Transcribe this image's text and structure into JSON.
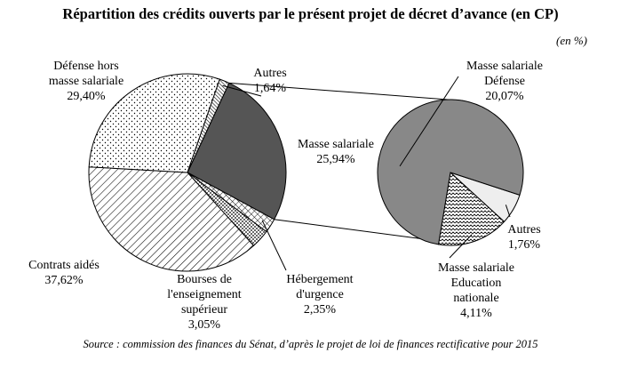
{
  "title": "Répartition des crédits ouverts par le présent projet de décret d’avance (en CP)",
  "unit": "(en %)",
  "source": "Source : commission des finances du Sénat, d’après le projet de loi de finances rectificative pour 2015",
  "colors": {
    "dark": "#555555",
    "medium": "#888888",
    "light": "#eeeeee",
    "stroke": "#000000"
  },
  "chart_data": [
    {
      "type": "pie",
      "slices": [
        {
          "label_lines": [
            "Masse salariale",
            "25,94%"
          ],
          "value": 25.94,
          "fill": "dark"
        },
        {
          "label_lines": [
            "Hébergement",
            "d'urgence",
            "2,35%"
          ],
          "value": 2.35,
          "fill": "crosshatch"
        },
        {
          "label_lines": [
            "Bourses de",
            "l'enseignement",
            "supérieur",
            "3,05%"
          ],
          "value": 3.05,
          "fill": "dots-small"
        },
        {
          "label_lines": [
            "Contrats aidés",
            "37,62%"
          ],
          "value": 37.62,
          "fill": "diagonal"
        },
        {
          "label_lines": [
            "Défense hors",
            "masse salariale",
            "29,40%"
          ],
          "value": 29.4,
          "fill": "dots"
        },
        {
          "label_lines": [
            "Autres",
            "1,64%"
          ],
          "value": 1.64,
          "fill": "diag-dense"
        }
      ]
    },
    {
      "type": "pie",
      "slices": [
        {
          "label_lines": [
            "Masse salariale",
            "Défense",
            "20,07%"
          ],
          "value": 20.07,
          "fill": "medium"
        },
        {
          "label_lines": [
            "Autres",
            "1,76%"
          ],
          "value": 1.76,
          "fill": "light"
        },
        {
          "label_lines": [
            "Masse salariale",
            "Education",
            "nationale",
            "4,11%"
          ],
          "value": 4.11,
          "fill": "waves"
        }
      ]
    }
  ]
}
